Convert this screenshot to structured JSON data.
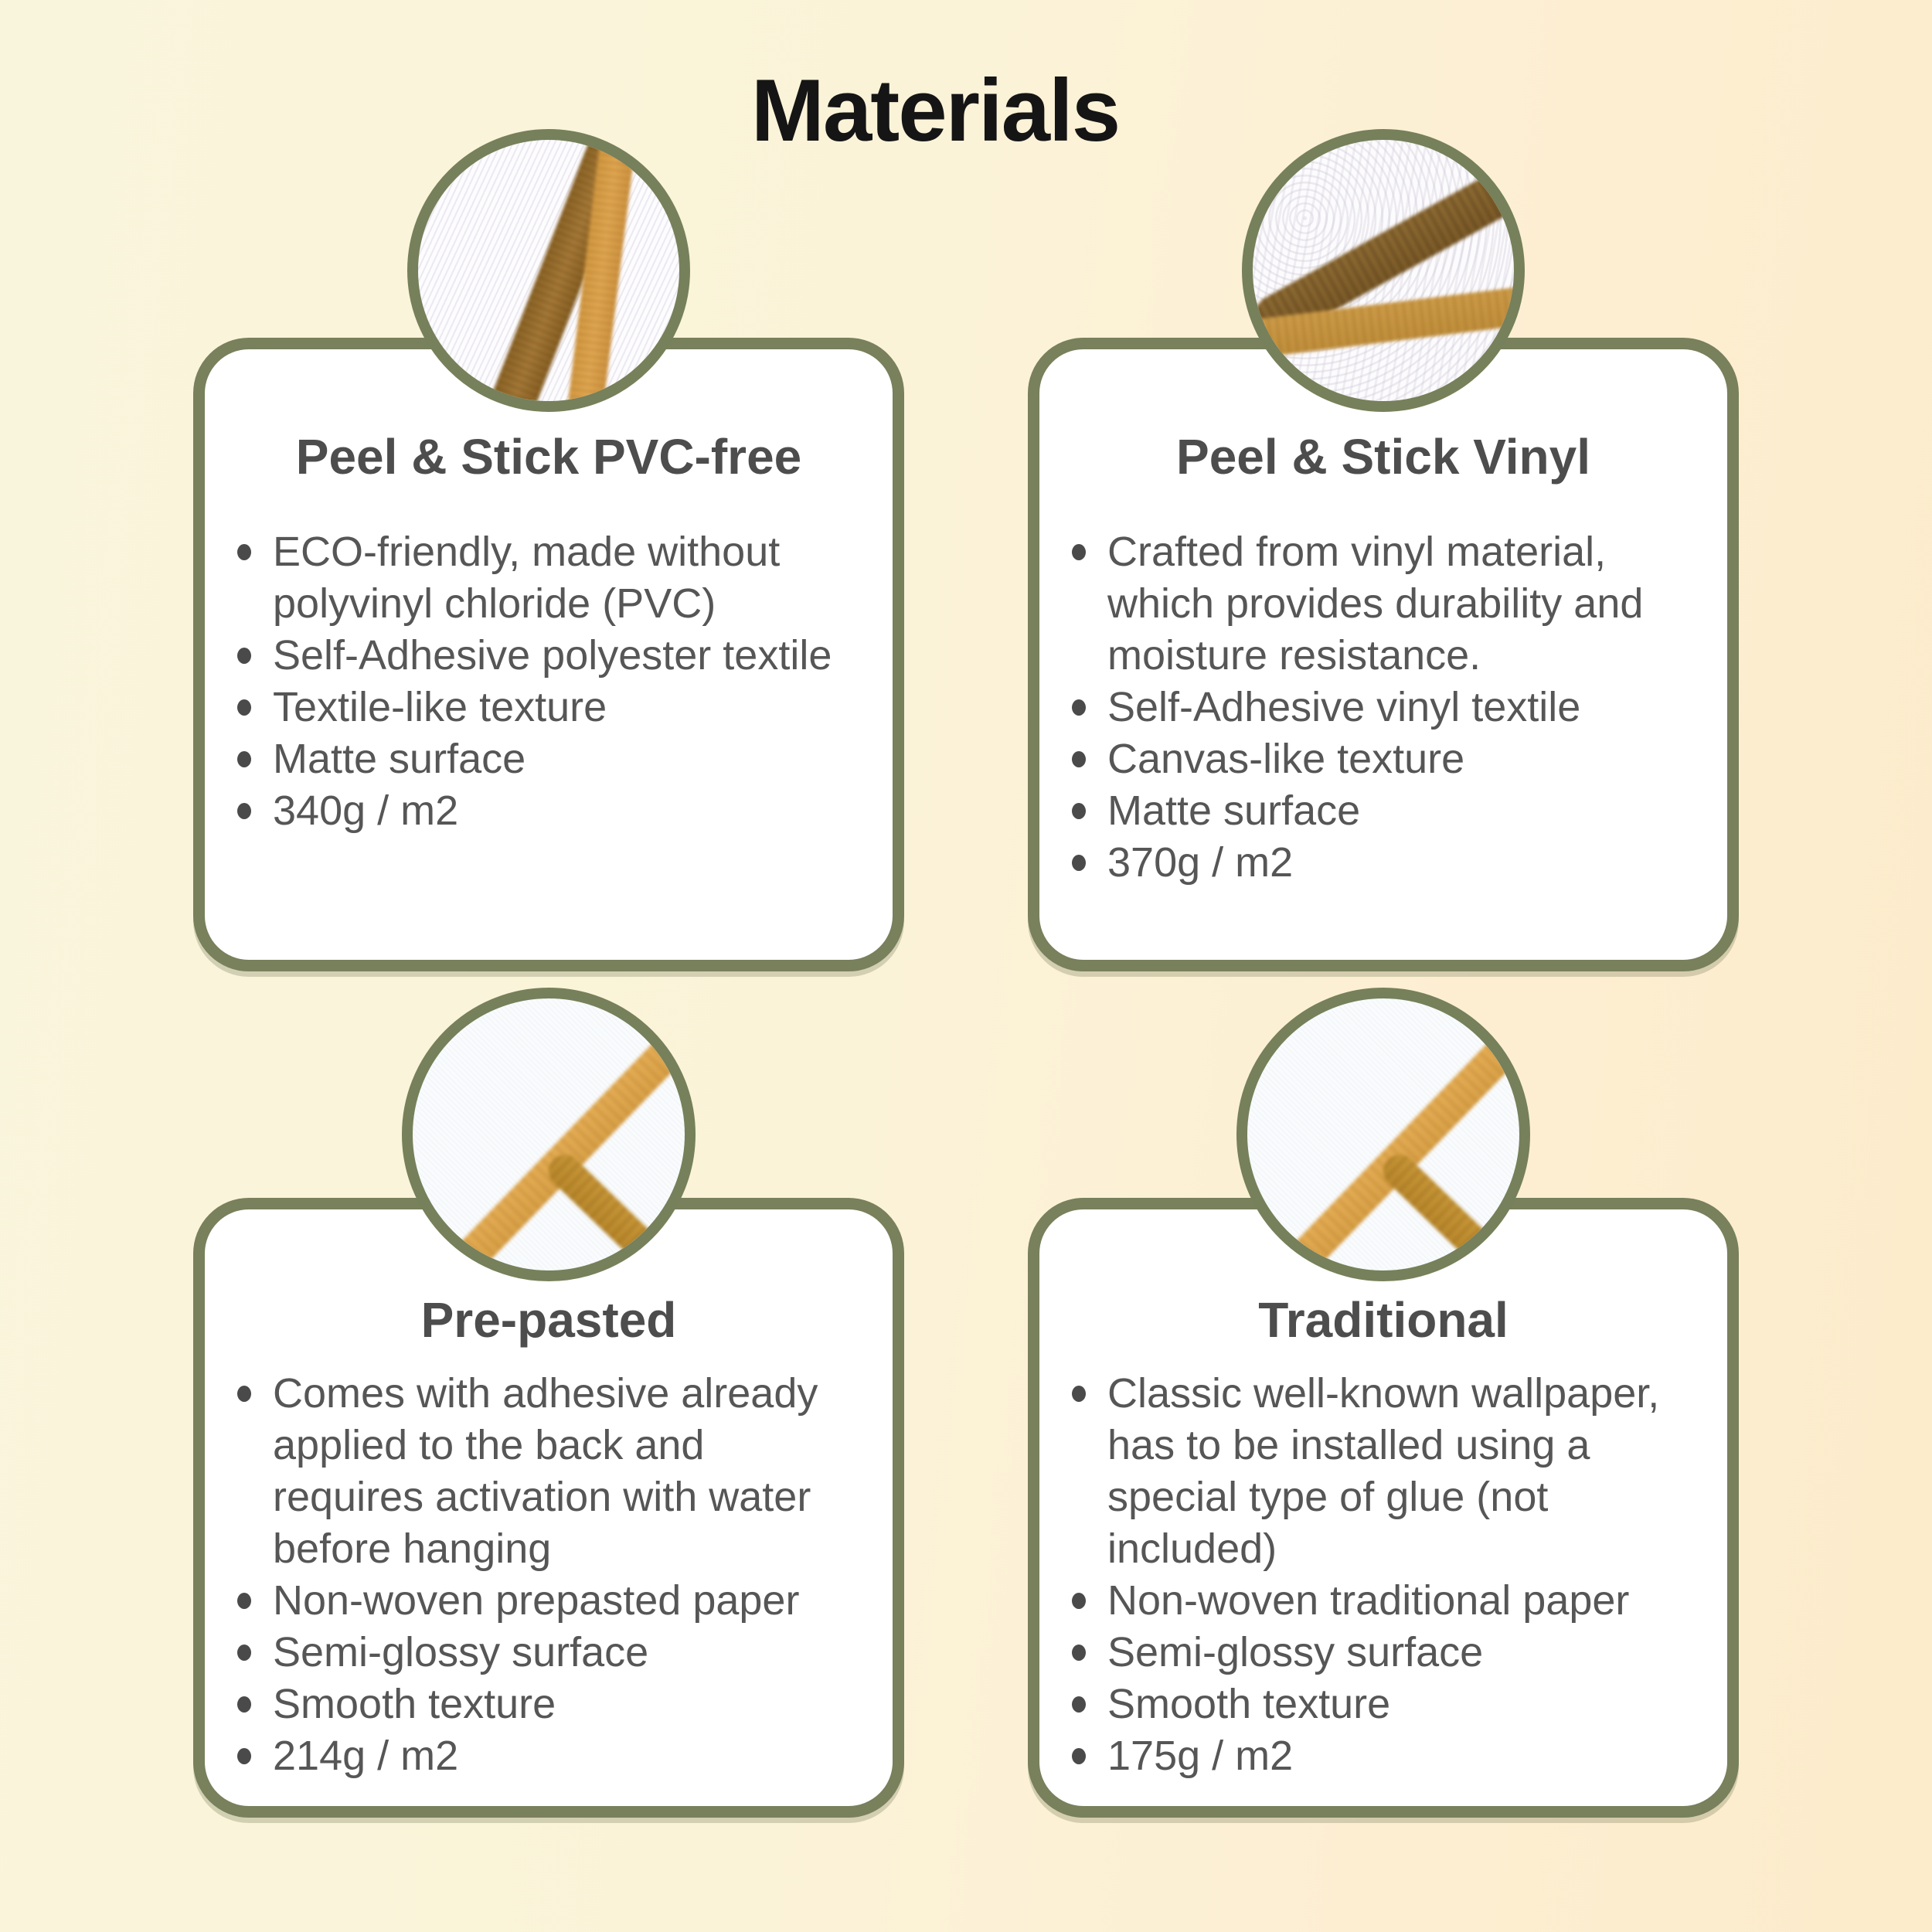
{
  "page": {
    "title": "Materials"
  },
  "colors": {
    "background_left": "#f9f5dc",
    "background_right": "#fceccb",
    "card_background": "#ffffff",
    "accent_olive_border": "#78805c",
    "title_text": "#151515",
    "heading_text": "#4d4d4d",
    "body_text": "#565656",
    "swatch_gold": "#e2a853",
    "swatch_brown": "#8d6526"
  },
  "cards": [
    {
      "id": "peel-stick-pvc-free",
      "title": "Peel & Stick PVC-free",
      "swatch": "textile-twill-swatch",
      "bullets": [
        "ECO-friendly, made without polyvinyl chloride (PVC)",
        "Self-Adhesive polyester textile",
        "Textile-like texture",
        "Matte surface",
        "340g / m2"
      ]
    },
    {
      "id": "peel-stick-vinyl",
      "title": "Peel & Stick Vinyl",
      "swatch": "vinyl-canvas-swatch",
      "bullets": [
        "Crafted from vinyl material, which provides durability and moisture resistance.",
        "Self-Adhesive vinyl textile",
        "Canvas-like texture",
        "Matte surface",
        "370g / m2"
      ]
    },
    {
      "id": "pre-pasted",
      "title": "Pre-pasted",
      "swatch": "smooth-paper-swatch",
      "bullets": [
        "Comes with adhesive already applied to the back and requires activation with water before hanging",
        "Non-woven prepasted paper",
        "Semi-glossy surface",
        "Smooth texture",
        "214g / m2"
      ]
    },
    {
      "id": "traditional",
      "title": "Traditional",
      "swatch": "smooth-paper-swatch",
      "bullets": [
        "Classic well-known wallpaper, has to be installed using a special type of glue (not included)",
        "Non-woven traditional paper",
        "Semi-glossy surface",
        "Smooth texture",
        "175g / m2"
      ]
    }
  ]
}
